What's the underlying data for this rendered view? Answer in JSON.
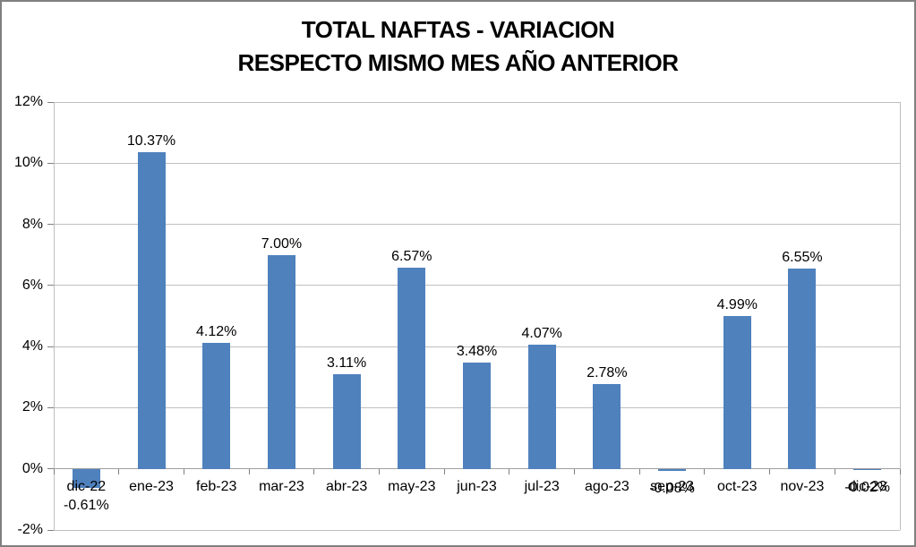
{
  "chart_data": {
    "type": "bar",
    "title": "TOTAL NAFTAS - VARIACION",
    "subtitle": "RESPECTO MISMO MES AÑO ANTERIOR",
    "categories": [
      "dic-22",
      "ene-23",
      "feb-23",
      "mar-23",
      "abr-23",
      "may-23",
      "jun-23",
      "jul-23",
      "ago-23",
      "sep-23",
      "oct-23",
      "nov-23",
      "dic-23"
    ],
    "values": [
      -0.61,
      10.37,
      4.12,
      7.0,
      3.11,
      6.57,
      3.48,
      4.07,
      2.78,
      -0.08,
      4.99,
      6.55,
      -0.02
    ],
    "labels": [
      "-0.61%",
      "10.37%",
      "4.12%",
      "7.00%",
      "3.11%",
      "6.57%",
      "3.48%",
      "4.07%",
      "2.78%",
      "-0.08%",
      "4.99%",
      "6.55%",
      "-0.02%"
    ],
    "xlabel": "",
    "ylabel": "",
    "ylim": [
      -2,
      12
    ],
    "ytick_step": 2,
    "ytick_labels": [
      "12%",
      "10%",
      "8%",
      "6%",
      "4%",
      "2%",
      "0%",
      "-2%"
    ],
    "grid": true,
    "legend": "none",
    "colors": {
      "bar": "#4F81BD",
      "gridline": "#BFBFBF",
      "axis_line": "#9E9E9E",
      "tick": "#808080",
      "text": "#000000",
      "frame_border": "#808080",
      "background": "#FFFFFF"
    }
  }
}
